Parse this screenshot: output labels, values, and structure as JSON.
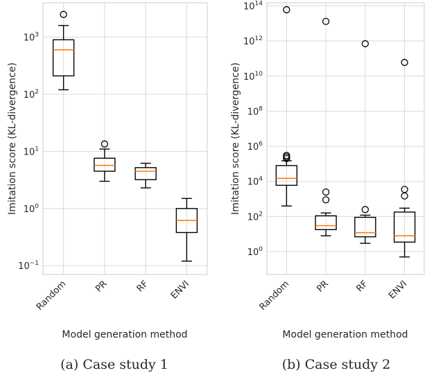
{
  "chart_data": [
    {
      "type": "box",
      "caption": "(a) Case study 1",
      "xlabel": "Model generation method",
      "ylabel": "Imitation score (KL-divergence)",
      "yscale": "log",
      "ylim": [
        0.07,
        4000
      ],
      "yticks": [
        {
          "value": 0.1,
          "base": "10",
          "exp": "−1"
        },
        {
          "value": 1,
          "base": "10",
          "exp": "0"
        },
        {
          "value": 10,
          "base": "10",
          "exp": "1"
        },
        {
          "value": 100,
          "base": "10",
          "exp": "2"
        },
        {
          "value": 1000,
          "base": "10",
          "exp": "3"
        }
      ],
      "grid": true,
      "categories": [
        "Random",
        "PR",
        "RF",
        "ENVI"
      ],
      "boxes": [
        {
          "whislo": 120,
          "q1": 210,
          "med": 600,
          "q3": 900,
          "whishi": 1600,
          "fliers": [
            2500
          ]
        },
        {
          "whislo": 3.0,
          "q1": 4.5,
          "med": 5.7,
          "q3": 7.6,
          "whishi": 11,
          "fliers": [
            13.5
          ]
        },
        {
          "whislo": 2.3,
          "q1": 3.2,
          "med": 4.5,
          "q3": 5.2,
          "whishi": 6.2,
          "fliers": []
        },
        {
          "whislo": 0.12,
          "q1": 0.38,
          "med": 0.62,
          "q3": 1.0,
          "whishi": 1.5,
          "fliers": []
        }
      ],
      "median_color": "#ff7f0e"
    },
    {
      "type": "box",
      "caption": "(b) Case study 2",
      "xlabel": "Model generation method",
      "ylabel": "Imitation score (KL-divergence)",
      "yscale": "log",
      "ylim": [
        0.05,
        150000000000000.0
      ],
      "yticks": [
        {
          "value": 1,
          "base": "10",
          "exp": "0"
        },
        {
          "value": 100,
          "base": "10",
          "exp": "2"
        },
        {
          "value": 10000,
          "base": "10",
          "exp": "4"
        },
        {
          "value": 1000000,
          "base": "10",
          "exp": "6"
        },
        {
          "value": 100000000,
          "base": "10",
          "exp": "8"
        },
        {
          "value": 10000000000,
          "base": "10",
          "exp": "10"
        },
        {
          "value": 1000000000000,
          "base": "10",
          "exp": "12"
        },
        {
          "value": 100000000000000,
          "base": "10",
          "exp": "14"
        }
      ],
      "grid": true,
      "categories": [
        "Random",
        "PR",
        "RF",
        "ENVI"
      ],
      "boxes": [
        {
          "whislo": 400,
          "q1": 6000,
          "med": 15000,
          "q3": 80000,
          "whishi": 150000,
          "fliers": [
            200000,
            250000,
            300000,
            60000000000000
          ]
        },
        {
          "whislo": 8,
          "q1": 18,
          "med": 30,
          "q3": 110,
          "whishi": 160,
          "fliers": [
            900,
            2500,
            13000000000000
          ]
        },
        {
          "whislo": 3,
          "q1": 7,
          "med": 12,
          "q3": 90,
          "whishi": 120,
          "fliers": [
            250,
            700000000000
          ]
        },
        {
          "whislo": 0.5,
          "q1": 3.5,
          "med": 8,
          "q3": 180,
          "whishi": 300,
          "fliers": [
            1500,
            3500,
            60000000000
          ]
        }
      ],
      "median_color": "#ff7f0e"
    }
  ]
}
